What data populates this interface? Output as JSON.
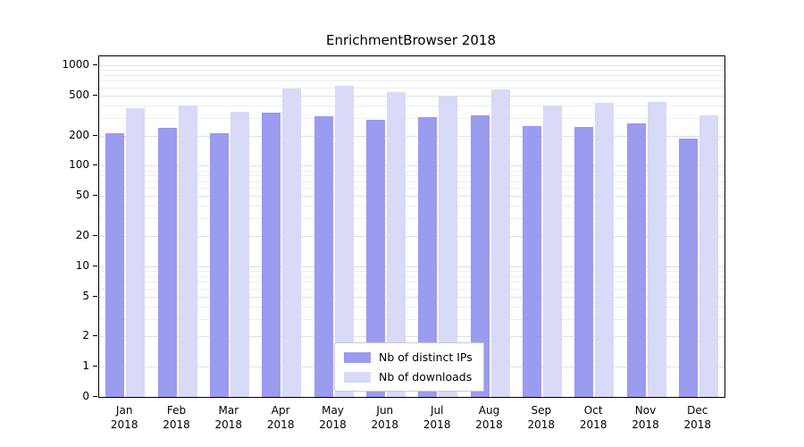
{
  "chart_data": {
    "type": "bar",
    "title": "EnrichmentBrowser 2018",
    "categories": [
      "Jan",
      "Feb",
      "Mar",
      "Apr",
      "May",
      "Jun",
      "Jul",
      "Aug",
      "Sep",
      "Oct",
      "Nov",
      "Dec"
    ],
    "year": "2018",
    "series": [
      {
        "name": "Nb of distinct IPs",
        "color": "#9b9bef",
        "values": [
          210,
          240,
          210,
          340,
          310,
          285,
          305,
          315,
          250,
          245,
          265,
          185
        ]
      },
      {
        "name": "Nb of downloads",
        "color": "#d9d9f8",
        "values": [
          375,
          400,
          345,
          590,
          630,
          540,
          490,
          575,
          400,
          425,
          430,
          320
        ]
      }
    ],
    "yscale": "log",
    "yticks": [
      0,
      1,
      2,
      5,
      10,
      20,
      50,
      100,
      200,
      500,
      1000
    ],
    "ylim": [
      0,
      1000
    ],
    "grid": true,
    "legend_position": "bottom-center-inside"
  }
}
